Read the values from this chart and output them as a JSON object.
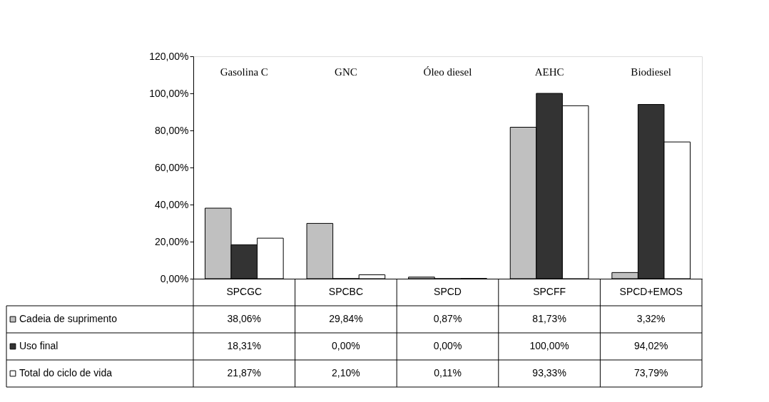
{
  "chart_data": {
    "type": "bar",
    "categories": [
      "SPCGC",
      "SPCBC",
      "SPCD",
      "SPCFF",
      "SPCD+EMOS"
    ],
    "series": [
      {
        "name": "Cadeia de suprimento",
        "color": "#c0c0c0",
        "values": [
          38.06,
          29.84,
          0.87,
          81.73,
          3.32
        ],
        "value_labels": [
          "38,06%",
          "29,84%",
          "0,87%",
          "81,73%",
          "3,32%"
        ]
      },
      {
        "name": "Uso final",
        "color": "#333333",
        "values": [
          18.31,
          0.0,
          0.0,
          100.0,
          94.02
        ],
        "value_labels": [
          "18,31%",
          "0,00%",
          "0,00%",
          "100,00%",
          "94,02%"
        ]
      },
      {
        "name": "Total do ciclo de vida",
        "color": "#ffffff",
        "values": [
          21.87,
          2.1,
          0.11,
          93.33,
          73.79
        ],
        "value_labels": [
          "21,87%",
          "2,10%",
          "0,11%",
          "93,33%",
          "73,79%"
        ]
      }
    ],
    "annotations": [
      "Gasolina C",
      "GNC",
      "Óleo diesel",
      "AEHC",
      "Biodiesel"
    ],
    "ylim": [
      0,
      120
    ],
    "yticks": [
      {
        "value": 0,
        "label": "0,00%"
      },
      {
        "value": 20,
        "label": "20,00%"
      },
      {
        "value": 40,
        "label": "40,00%"
      },
      {
        "value": 60,
        "label": "60,00%"
      },
      {
        "value": 80,
        "label": "80,00%"
      },
      {
        "value": 100,
        "label": "100,00%"
      },
      {
        "value": 120,
        "label": "120,00%"
      }
    ],
    "grid": false,
    "legend": "bottom left"
  }
}
